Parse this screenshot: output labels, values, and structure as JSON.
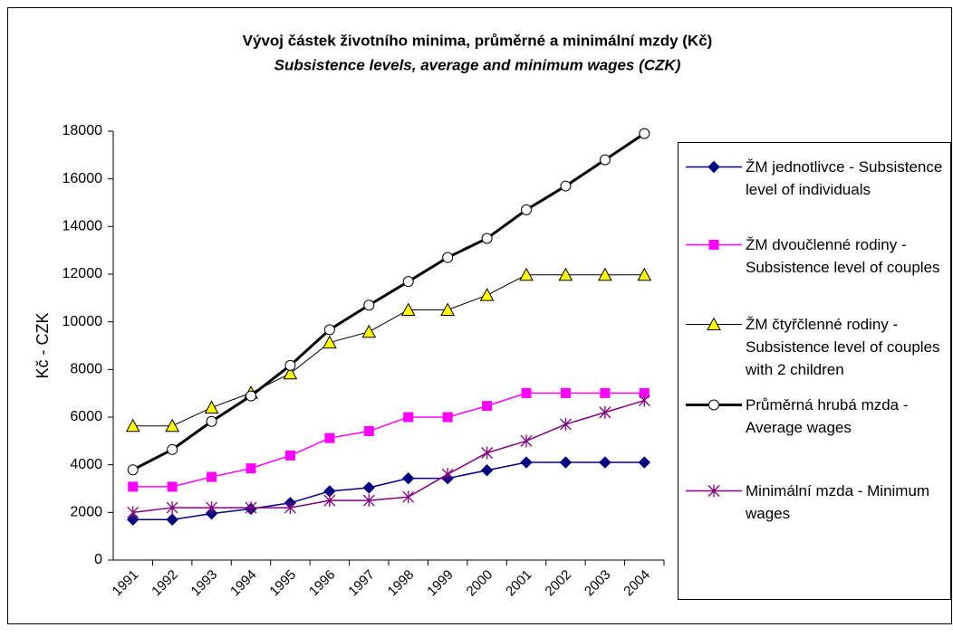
{
  "chart_data": {
    "type": "line",
    "title": "Vývoj částek životního minima, průměrné a minimální mzdy (Kč)",
    "subtitle": "Subsistence levels, average and minimum wages (CZK)",
    "y_label": "Kč - CZK",
    "categories": [
      "1991",
      "1992",
      "1993",
      "1994",
      "1995",
      "1996",
      "1997",
      "1998",
      "1999",
      "2000",
      "2001",
      "2002",
      "2003",
      "2004"
    ],
    "ylim": [
      0,
      18000
    ],
    "yticks": [
      0,
      2000,
      4000,
      6000,
      8000,
      10000,
      12000,
      14000,
      16000,
      18000
    ],
    "grid": false,
    "legend": "right",
    "series": [
      {
        "name": "ŽM jednotlivce - Subsistence level of individuals",
        "color": "#000080",
        "line_color": "#000080",
        "marker": "diamond",
        "line_width": 1.5,
        "values": [
          1700,
          1700,
          1950,
          2150,
          2400,
          2890,
          3040,
          3430,
          3430,
          3770,
          4100,
          4100,
          4100,
          4100
        ]
      },
      {
        "name": "ŽM dvoučlenné rodiny - Subsistence level of couples",
        "color": "#ff00ff",
        "line_color": "#ff00ff",
        "marker": "square",
        "line_width": 1.5,
        "values": [
          3080,
          3080,
          3490,
          3850,
          4390,
          5120,
          5410,
          6000,
          6000,
          6470,
          7010,
          7010,
          7010,
          7010
        ]
      },
      {
        "name": "ŽM čtyřčlenné rodiny - Subsistence level of couples with 2 children",
        "color": "#ffff00",
        "line_color": "#000000",
        "marker": "triangle",
        "line_width": 1,
        "values": [
          5630,
          5630,
          6400,
          7020,
          7830,
          9130,
          9580,
          10500,
          10500,
          11120,
          11970,
          11970,
          11970,
          11970
        ]
      },
      {
        "name": "Průměrná hrubá mzda - Average wages",
        "color": "#ffffff",
        "line_color": "#000000",
        "marker": "circle",
        "line_width": 3,
        "values": [
          3790,
          4640,
          5820,
          6890,
          8170,
          9670,
          10700,
          11690,
          12700,
          13500,
          14700,
          15700,
          16800,
          17900
        ]
      },
      {
        "name": "Minimální mzda - Minimum wages",
        "color": "#800080",
        "line_color": "#800080",
        "marker": "star",
        "line_width": 1.5,
        "values": [
          2000,
          2200,
          2200,
          2200,
          2200,
          2500,
          2500,
          2650,
          3600,
          4500,
          5000,
          5700,
          6200,
          6700
        ]
      }
    ]
  }
}
